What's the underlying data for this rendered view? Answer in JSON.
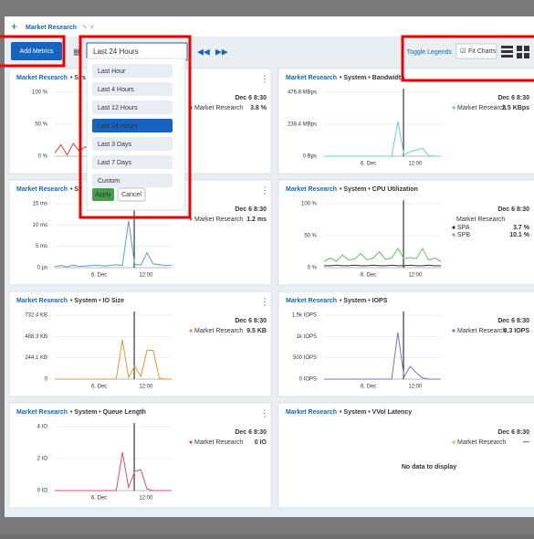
{
  "tab": {
    "title": "Market Research"
  },
  "toolbar": {
    "add_metrics": "Add Metrics",
    "range": "Last 24 Hours",
    "toggle_legends": "Toggle Legends",
    "fit_charts": "Fit Charts"
  },
  "dropdown": {
    "options": [
      "Last Hour",
      "Last 4 Hours",
      "Last 12 Hours",
      "Last 24 Hours",
      "Last 3 Days",
      "Last 7 Days",
      "Custom"
    ],
    "selected": "Last 24 Hours",
    "apply": "Apply",
    "cancel": "Cancel"
  },
  "panels": [
    {
      "source": "Market Research",
      "metric": "• Sys",
      "ylim": [
        0,
        100
      ],
      "yticks": [
        {
          "value": 100,
          "label": "100 %"
        },
        {
          "value": 50,
          "label": "50 %"
        },
        {
          "value": 0,
          "label": "0 %"
        }
      ],
      "xticks": [],
      "legend": {
        "time": "Dec 6 8:30",
        "series": [
          {
            "name": "Market Research",
            "color": "#e0393e",
            "value": "3.8 %",
            "values": [
              5,
              18,
              2,
              20,
              8,
              15,
              3,
              12,
              0,
              0,
              0,
              0,
              0,
              0,
              0,
              0,
              0,
              0,
              0,
              0
            ]
          }
        ]
      }
    },
    {
      "source": "Market Research",
      "metric": "• System • Bandwidth",
      "ylim": [
        0,
        476.8
      ],
      "yticks": [
        {
          "value": 476.8,
          "label": "476.8 MBps"
        },
        {
          "value": 238.4,
          "label": "238.4 MBps"
        },
        {
          "value": 0,
          "label": "0 Bps"
        }
      ],
      "xticks": [
        "6. Dec",
        "12:00"
      ],
      "legend": {
        "time": "Dec 6 8:30",
        "series": [
          {
            "name": "Market Research",
            "color": "#5fd3d3",
            "value": "2.5 KBps",
            "values": [
              0,
              0,
              0,
              0,
              0,
              0,
              0,
              0,
              0,
              0,
              0,
              0,
              260,
              10,
              35,
              45,
              60,
              5,
              0,
              0
            ]
          }
        ]
      }
    },
    {
      "source": "Market Research",
      "metric": "• Sy",
      "ylim": [
        0,
        15
      ],
      "yticks": [
        {
          "value": 15,
          "label": "15 ms"
        },
        {
          "value": 10,
          "label": "10 ms"
        },
        {
          "value": 5,
          "label": "5 ms"
        },
        {
          "value": 0,
          "label": "0 µs"
        }
      ],
      "xticks": [
        "6. Dec",
        "12:00"
      ],
      "legend": {
        "time": "Dec 6 8:30",
        "series": [
          {
            "name": "Market Research",
            "color": "#5b9bd5",
            "value": "1.2 ms",
            "values": [
              0.3,
              0.5,
              0.2,
              0.6,
              0.3,
              0.4,
              0.5,
              0.6,
              0.4,
              0.5,
              0.7,
              0.5,
              11,
              0.8,
              0.6,
              3.5,
              0.9,
              0.7,
              0.5,
              0.6
            ]
          }
        ]
      }
    },
    {
      "source": "Market Research",
      "metric": "• System • CPU Utilization",
      "ylim": [
        0,
        100
      ],
      "yticks": [
        {
          "value": 100,
          "label": "100 %"
        },
        {
          "value": 50,
          "label": "50 %"
        },
        {
          "value": 0,
          "label": "0 %"
        }
      ],
      "xticks": [
        "6. Dec",
        "12:00"
      ],
      "legend": {
        "time": "Dec 6 8:30",
        "group": "Market Research",
        "series": [
          {
            "name": "SPA",
            "color": "#333333",
            "value": "3.7 %",
            "values": [
              3,
              3,
              4,
              3,
              3,
              4,
              3,
              3,
              4,
              3,
              3,
              4,
              3,
              3,
              4,
              3,
              3,
              4,
              3,
              3
            ]
          },
          {
            "name": "SPB",
            "color": "#62c462",
            "value": "10.1 %",
            "values": [
              10,
              15,
              10,
              20,
              12,
              14,
              22,
              12,
              15,
              25,
              13,
              15,
              30,
              14,
              16,
              14,
              30,
              12,
              15,
              10
            ]
          }
        ]
      }
    },
    {
      "source": "Market Research",
      "metric": "• System • IO Size",
      "ylim": [
        0,
        732.4
      ],
      "yticks": [
        {
          "value": 732.4,
          "label": "732.4 KB"
        },
        {
          "value": 488.3,
          "label": "488.3 KB"
        },
        {
          "value": 244.1,
          "label": "244.1 KB"
        },
        0
      ],
      "xticks": [
        "6. Dec",
        "12:00"
      ],
      "legend": {
        "time": "Dec 6 8:30",
        "series": [
          {
            "name": "Market Research",
            "color": "#f0923a",
            "value": "9.5 KB",
            "values": [
              0,
              0,
              0,
              0,
              0,
              0,
              0,
              0,
              0,
              0,
              0,
              450,
              20,
              150,
              30,
              330,
              330,
              10,
              0,
              0
            ]
          }
        ]
      }
    },
    {
      "source": "Market Research",
      "metric": "• System • IOPS",
      "ylim": [
        0,
        1500
      ],
      "yticks": [
        {
          "value": 1500,
          "label": "1.5k IOPS"
        },
        {
          "value": 1000,
          "label": "1k IOPS"
        },
        {
          "value": 500,
          "label": "500 IOPS"
        },
        {
          "value": 0,
          "label": "0 IOPS"
        }
      ],
      "xticks": [
        "6. Dec",
        "12:00"
      ],
      "legend": {
        "time": "Dec 6 8:30",
        "series": [
          {
            "name": "Market Research",
            "color": "#7b6fd6",
            "value": "0.3 IOPS",
            "values": [
              0,
              0,
              0,
              0,
              0,
              0,
              0,
              0,
              0,
              0,
              0,
              0,
              1100,
              50,
              300,
              150,
              30,
              0,
              0,
              0
            ]
          }
        ]
      }
    },
    {
      "source": "Market Research",
      "metric": "• System • Queue Length",
      "ylim": [
        0,
        4
      ],
      "yticks": [
        {
          "value": 4,
          "label": "4 IO"
        },
        {
          "value": 2,
          "label": "2 IO"
        },
        {
          "value": 0,
          "label": "0 IO"
        }
      ],
      "xticks": [
        "6. Dec",
        "12:00"
      ],
      "legend": {
        "time": "Dec 6 8:30",
        "series": [
          {
            "name": "Market Research",
            "color": "#e24a6c",
            "value": "0 IO",
            "values": [
              0,
              0,
              0,
              0,
              0,
              0,
              0,
              0,
              0,
              0,
              0,
              2.4,
              0.2,
              1.2,
              1.3,
              0.1,
              0,
              0,
              0,
              0
            ]
          }
        ]
      }
    },
    {
      "source": "Market Research",
      "metric": "• System • VVol Latency",
      "no_data": "No data to display",
      "legend": {
        "time": "Dec 6 8:30",
        "series": [
          {
            "name": "Market Research",
            "color": "#f0b23a",
            "value": "—"
          }
        ]
      }
    }
  ]
}
